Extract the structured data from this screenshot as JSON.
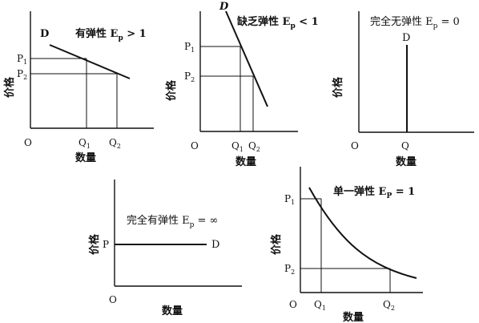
{
  "panels": [
    {
      "id": "elastic",
      "title": "有弹性 E",
      "sub": "p",
      "tail": " > 1",
      "curve_label": "D",
      "ylabel": "价格",
      "xlabel": "数量",
      "origin": "O",
      "ticks": {
        "p1": "P",
        "p1s": "1",
        "p2": "P",
        "p2s": "2",
        "q1": "Q",
        "q1s": "1",
        "q2": "Q",
        "q2s": "2"
      }
    },
    {
      "id": "inelastic",
      "title": "缺乏弹性 E",
      "sub": "p",
      "tail": " < 1",
      "curve_label": "D",
      "ylabel": "价格",
      "xlabel": "数量",
      "origin": "O",
      "ticks": {
        "p1": "P",
        "p1s": "1",
        "p2": "P",
        "p2s": "2",
        "q1": "Q",
        "q1s": "1",
        "q2": "Q",
        "q2s": "2"
      }
    },
    {
      "id": "perfectly-inelastic",
      "title": "完全无弹性 E",
      "sub": "p",
      "tail": " = 0",
      "curve_label": "D",
      "ylabel": "价格",
      "xlabel": "数量",
      "origin": "O",
      "ticks": {
        "q": "Q"
      }
    },
    {
      "id": "perfectly-elastic",
      "title": "完全有弹性 E",
      "sub": "p",
      "tail": " = ∞",
      "curve_label": "D",
      "ylabel": "价格",
      "xlabel": "数量",
      "origin": "O",
      "ticks": {
        "p": "P"
      }
    },
    {
      "id": "unit-elastic",
      "title": "单一弹性 E",
      "sub": "P",
      "tail": " = 1",
      "ylabel": "价格",
      "xlabel": "数量",
      "origin": "O",
      "ticks": {
        "p1": "P",
        "p1s": "1",
        "p2": "P",
        "p2s": "2",
        "q1": "Q",
        "q1s": "1",
        "q2": "Q",
        "q2s": "2"
      }
    }
  ]
}
